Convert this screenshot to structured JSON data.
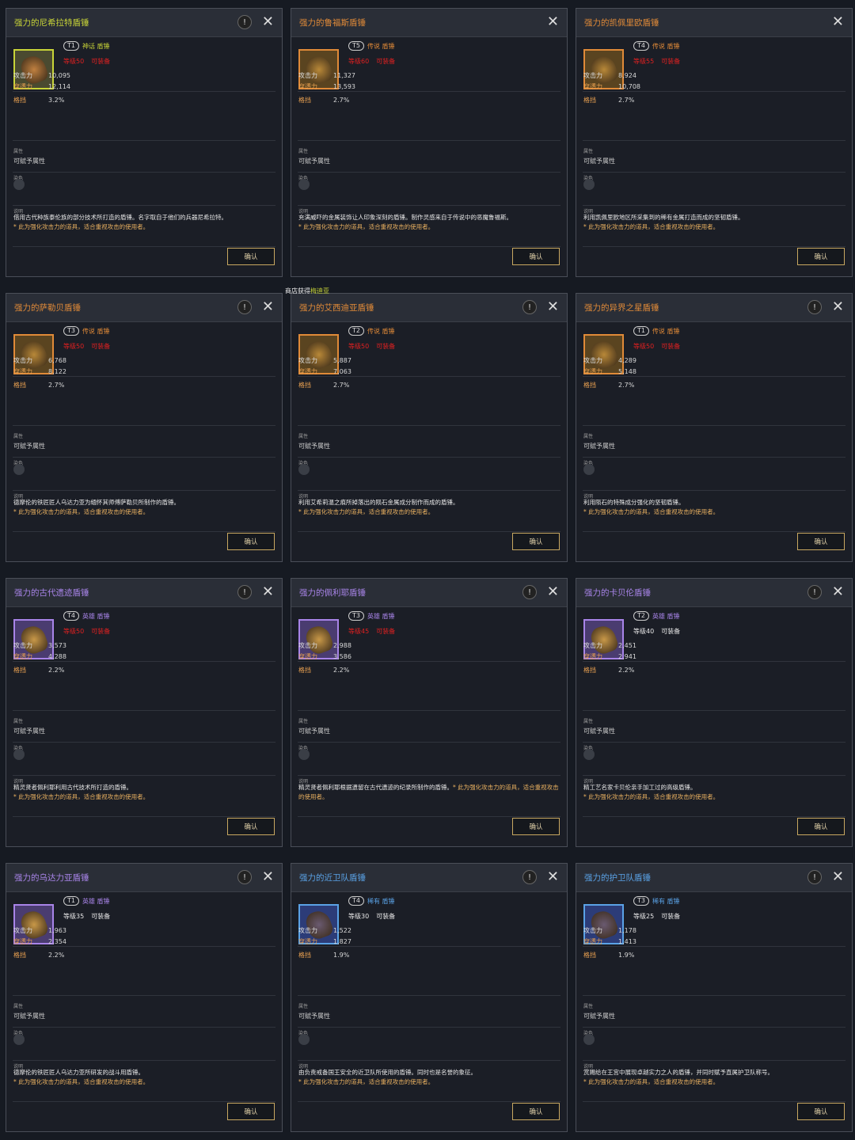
{
  "labels": {
    "atk": "攻击力",
    "pen": "穿透力",
    "block": "格挡",
    "attr_header": "属性",
    "attr_value": "可赋予属性",
    "dye_header": "染色",
    "desc_header": "说明",
    "confirm": "确认",
    "equip": "可装备"
  },
  "tooltip": {
    "prefix": "商店获得",
    "name": "梅迪亚"
  },
  "rarity_colors": {
    "mythic": "#c8d438",
    "legendary": "#e08a38",
    "hero": "#a884e8",
    "rare": "#5aa2e6"
  },
  "cards": [
    {
      "title": "强力的尼希拉特盾锤",
      "tier": "T1",
      "rarity": "mythic",
      "rarity_label": "神话 盾锤",
      "level": "等级50",
      "level_ok": false,
      "pin": true,
      "atk": "10,095",
      "pen": "12,114",
      "block": "3.2%",
      "desc": "借用古代种族泰伦族的部分技术所打造的盾锤。名字取自于他们的兵器尼希拉特。",
      "note": "* 此为强化攻击力的道具，适合重视攻击的使用者。"
    },
    {
      "title": "强力的鲁福斯盾锤",
      "tier": "T5",
      "rarity": "legendary",
      "rarity_label": "传说 盾锤",
      "level": "等级60",
      "level_ok": false,
      "pin": false,
      "atk": "11,327",
      "pen": "13,593",
      "block": "2.7%",
      "desc": "充满威吓的金属装饰让人印象深刻的盾锤。制作灵感来自于传说中的恶魔鲁福斯。",
      "note": "* 此为强化攻击力的道具，适合重视攻击的使用者。"
    },
    {
      "title": "强力的凯佩里欧盾锤",
      "tier": "T4",
      "rarity": "legendary",
      "rarity_label": "传说 盾锤",
      "level": "等级55",
      "level_ok": false,
      "pin": false,
      "atk": "8,924",
      "pen": "10,708",
      "block": "2.7%",
      "desc": "利用凯佩里欧地区所采集到的稀有金属打造而成的坚韧盾锤。",
      "note": "* 此为强化攻击力的道具，适合重视攻击的使用者。"
    },
    {
      "title": "强力的萨勒贝盾锤",
      "tier": "T3",
      "rarity": "legendary",
      "rarity_label": "传说 盾锤",
      "level": "等级50",
      "level_ok": false,
      "pin": true,
      "atk": "6,768",
      "pen": "8,122",
      "block": "2.7%",
      "desc": "德摩伦的铁匠匠人乌达力亚为缅怀其师傅萨勒贝所制作的盾锤。",
      "note": "* 此为强化攻击力的道具，适合重视攻击的使用者。"
    },
    {
      "title": "强力的艾西迪亚盾锤",
      "tier": "T2",
      "rarity": "legendary",
      "rarity_label": "传说 盾锤",
      "level": "等级50",
      "level_ok": false,
      "pin": true,
      "atk": "5,887",
      "pen": "7,063",
      "block": "2.7%",
      "desc": "利用艾希莉温之痕所掉落出的陨石金属成分制作而成的盾锤。",
      "note": "* 此为强化攻击力的道具，适合重视攻击的使用者。"
    },
    {
      "title": "强力的异界之星盾锤",
      "tier": "T1",
      "rarity": "legendary",
      "rarity_label": "传说 盾锤",
      "level": "等级50",
      "level_ok": false,
      "pin": true,
      "atk": "4,289",
      "pen": "5,148",
      "block": "2.7%",
      "desc": "利用陨石的特殊成分强化的坚韧盾锤。",
      "note": "* 此为强化攻击力的道具，适合重视攻击的使用者。"
    },
    {
      "title": "强力的古代遗迹盾锤",
      "tier": "T4",
      "rarity": "hero",
      "rarity_label": "英雄 盾锤",
      "level": "等级50",
      "level_ok": false,
      "pin": true,
      "atk": "3,573",
      "pen": "4,288",
      "block": "2.2%",
      "desc": "精灵贤者佩利耶利用古代技术所打造的盾锤。",
      "note": "* 此为强化攻击力的道具，适合重视攻击的使用者。"
    },
    {
      "title": "强力的佩利耶盾锤",
      "tier": "T3",
      "rarity": "hero",
      "rarity_label": "英雄 盾锤",
      "level": "等级45",
      "level_ok": false,
      "pin": true,
      "atk": "2,988",
      "pen": "3,586",
      "block": "2.2%",
      "desc": "精灵贤者佩利耶根据遗留在古代遗迹的纪录所制作的盾锤。",
      "note": "* 此为强化攻击力的道具，适合重视攻击的使用者。",
      "note_inline": true
    },
    {
      "title": "强力的卡贝伦盾锤",
      "tier": "T2",
      "rarity": "hero",
      "rarity_label": "英雄 盾锤",
      "level": "等级40",
      "level_ok": true,
      "pin": true,
      "atk": "2,451",
      "pen": "2,941",
      "block": "2.2%",
      "desc": "精工艺名家卡贝伦亲手加工过的高级盾锤。",
      "note": "* 此为强化攻击力的道具，适合重视攻击的使用者。"
    },
    {
      "title": "强力的乌达力亚盾锤",
      "tier": "T1",
      "rarity": "hero",
      "rarity_label": "英雄 盾锤",
      "level": "等级35",
      "level_ok": true,
      "pin": true,
      "atk": "1,963",
      "pen": "2,354",
      "block": "2.2%",
      "desc": "德摩伦的铁匠匠人乌达力亚所研发的战斗用盾锤。",
      "note": "* 此为强化攻击力的道具，适合重视攻击的使用者。"
    },
    {
      "title": "强力的近卫队盾锤",
      "tier": "T4",
      "rarity": "rare",
      "rarity_label": "稀有 盾锤",
      "level": "等级30",
      "level_ok": true,
      "pin": true,
      "atk": "1,522",
      "pen": "1,827",
      "block": "1.9%",
      "desc": "由负责戒备国王安全的近卫队所使用的盾锤。同时也是名誉的象征。",
      "note": "* 此为强化攻击力的道具，适合重视攻击的使用者。"
    },
    {
      "title": "强力的护卫队盾锤",
      "tier": "T3",
      "rarity": "rare",
      "rarity_label": "稀有 盾锤",
      "level": "等级25",
      "level_ok": true,
      "pin": true,
      "atk": "1,178",
      "pen": "1,413",
      "block": "1.9%",
      "desc": "赏赐给在王宫中展现卓越实力之人的盾锤，并同时赋予直属护卫队称号。",
      "note": "* 此为强化攻击力的道具，适合重视攻击的使用者。"
    }
  ]
}
